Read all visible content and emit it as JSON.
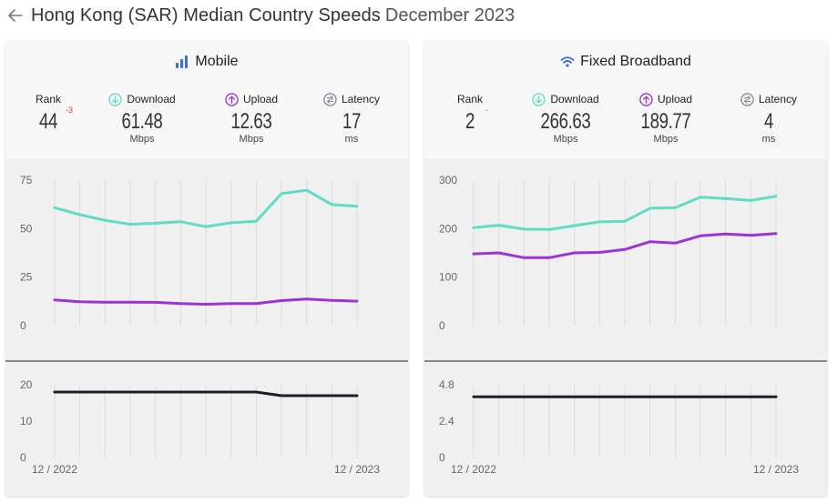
{
  "header": {
    "title": "Hong Kong (SAR) Median Country Speeds",
    "date": "December 2023"
  },
  "colors": {
    "download": "#5fdcc6",
    "upload": "#9d33d6",
    "latency": "#1d1d2c",
    "rank_change": "#d63b3b"
  },
  "panels": [
    {
      "key": "mobile",
      "title": "Mobile",
      "icon": "signal-bars-icon",
      "rank_label": "Rank",
      "rank": "44",
      "rank_change": "-3",
      "download_label": "Download",
      "download": "61.48",
      "download_unit": "Mbps",
      "upload_label": "Upload",
      "upload": "12.63",
      "upload_unit": "Mbps",
      "latency_label": "Latency",
      "latency": "17",
      "latency_unit": "ms"
    },
    {
      "key": "fixed",
      "title": "Fixed Broadband",
      "icon": "wifi-icon",
      "rank_label": "Rank",
      "rank": "2",
      "rank_change": "-",
      "download_label": "Download",
      "download": "266.63",
      "download_unit": "Mbps",
      "upload_label": "Upload",
      "upload": "189.77",
      "upload_unit": "Mbps",
      "latency_label": "Latency",
      "latency": "4",
      "latency_unit": "ms"
    }
  ],
  "chart_data": [
    {
      "type": "line",
      "panel": "Mobile",
      "x": [
        "12 / 2022",
        "01 / 2023",
        "02 / 2023",
        "03 / 2023",
        "04 / 2023",
        "05 / 2023",
        "06 / 2023",
        "07 / 2023",
        "08 / 2023",
        "09 / 2023",
        "10 / 2023",
        "11 / 2023",
        "12 / 2023"
      ],
      "x_tick_labels": [
        "12 / 2022",
        "12 / 2023"
      ],
      "speed": {
        "ylim": [
          0,
          75
        ],
        "yticks": [
          "0",
          "25",
          "50",
          "75"
        ],
        "series": [
          {
            "name": "Download",
            "values": [
              60.8,
              57.2,
              54.3,
              52.2,
              52.8,
              53.6,
              51.0,
              53.0,
              53.8,
              68.0,
              69.8,
              62.4,
              61.48
            ]
          },
          {
            "name": "Upload",
            "values": [
              13.2,
              12.3,
              12.1,
              12.1,
              12.0,
              11.4,
              11.0,
              11.4,
              11.4,
              12.9,
              13.7,
              13.0,
              12.63
            ]
          }
        ]
      },
      "latency": {
        "ylim": [
          0,
          20
        ],
        "yticks": [
          "0",
          "10",
          "20"
        ],
        "series": [
          {
            "name": "Latency",
            "values": [
              18,
              18,
              18,
              18,
              18,
              18,
              18,
              18,
              18,
              17,
              17,
              17,
              17
            ]
          }
        ]
      }
    },
    {
      "type": "line",
      "panel": "Fixed Broadband",
      "x": [
        "12 / 2022",
        "01 / 2023",
        "02 / 2023",
        "03 / 2023",
        "04 / 2023",
        "05 / 2023",
        "06 / 2023",
        "07 / 2023",
        "08 / 2023",
        "09 / 2023",
        "10 / 2023",
        "11 / 2023",
        "12 / 2023"
      ],
      "x_tick_labels": [
        "12 / 2022",
        "12 / 2023"
      ],
      "speed": {
        "ylim": [
          0,
          300
        ],
        "yticks": [
          "0",
          "100",
          "200",
          "300"
        ],
        "series": [
          {
            "name": "Download",
            "values": [
              202,
              207,
              199,
              198,
              206,
              214,
              215,
              242,
              243,
              265,
              262,
              258,
              266.63
            ]
          },
          {
            "name": "Upload",
            "values": [
              148,
              150,
              140,
              140,
              150,
              151,
              157,
              173,
              170,
              185,
              189,
              186,
              189.77
            ]
          }
        ]
      },
      "latency": {
        "ylim": [
          0,
          4.8
        ],
        "yticks": [
          "0",
          "2.4",
          "4.8"
        ],
        "series": [
          {
            "name": "Latency",
            "values": [
              4,
              4,
              4,
              4,
              4,
              4,
              4,
              4,
              4,
              4,
              4,
              4,
              4
            ]
          }
        ]
      }
    }
  ]
}
